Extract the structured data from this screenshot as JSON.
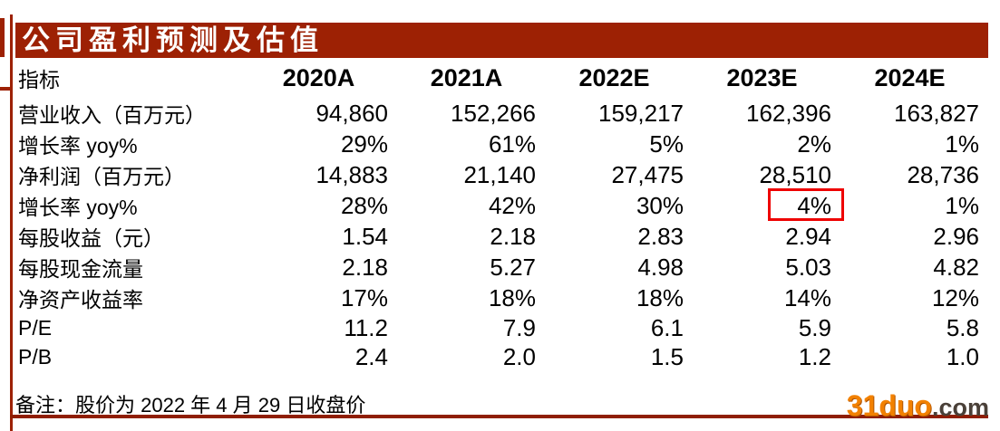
{
  "title": "公司盈利预测及估值",
  "table": {
    "indicator_header": "指标",
    "columns": [
      "2020A",
      "2021A",
      "2022E",
      "2023E",
      "2024E"
    ],
    "rows": [
      {
        "label": "营业收入（百万元）",
        "values": [
          "94,860",
          "152,266",
          "159,217",
          "162,396",
          "163,827"
        ]
      },
      {
        "label": "增长率 yoy%",
        "values": [
          "29%",
          "61%",
          "5%",
          "2%",
          "1%"
        ]
      },
      {
        "label": "净利润（百万元）",
        "values": [
          "14,883",
          "21,140",
          "27,475",
          "28,510",
          "28,736"
        ]
      },
      {
        "label": "增长率 yoy%",
        "values": [
          "28%",
          "42%",
          "30%",
          "4%",
          "1%"
        ],
        "highlighted_column": "2023E"
      },
      {
        "label": "每股收益（元）",
        "values": [
          "1.54",
          "2.18",
          "2.83",
          "2.94",
          "2.96"
        ]
      },
      {
        "label": "每股现金流量",
        "values": [
          "2.18",
          "5.27",
          "4.98",
          "5.03",
          "4.82"
        ]
      },
      {
        "label": "净资产收益率",
        "values": [
          "17%",
          "18%",
          "18%",
          "14%",
          "12%"
        ]
      },
      {
        "label": "P/E",
        "values": [
          "11.2",
          "7.9",
          "6.1",
          "5.9",
          "5.8"
        ]
      },
      {
        "label": "P/B",
        "values": [
          "2.4",
          "2.0",
          "1.5",
          "1.2",
          "1.0"
        ]
      }
    ]
  },
  "note": "备注：股价为 2022 年 4 月 29 日收盘价",
  "watermark": {
    "brand": "31duo",
    "suffix": ".com"
  },
  "colors": {
    "brand_red": "#9d2104",
    "highlight_box_red": "#ee0000",
    "watermark_orange": "#f28100",
    "watermark_suffix": "#4a4038",
    "title_text": "#ffffff",
    "body_text": "#000000"
  }
}
